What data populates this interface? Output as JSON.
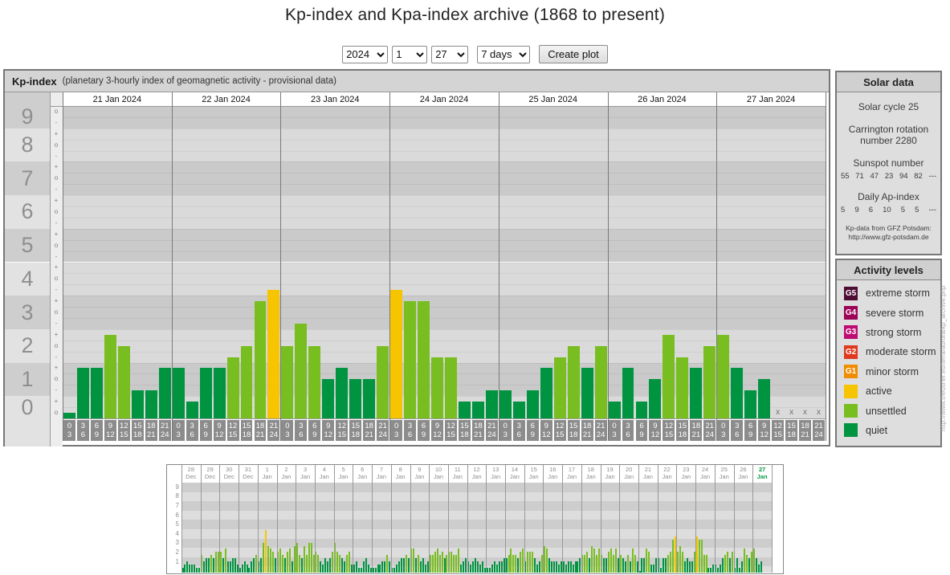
{
  "title": "Kp-index and Kpa-index archive (1868 to present)",
  "controls": {
    "year": "2024",
    "month": "1",
    "day": "27",
    "span": "7 days",
    "create_plot": "Create plot"
  },
  "kp_panel": {
    "title": "Kp-index",
    "subtitle": "(planetary 3-hourly index of geomagnetic activity - provisional data)",
    "no_data_marker": "x"
  },
  "solar_panel": {
    "title": "Solar data",
    "cycle": "Solar cycle 25",
    "carrington": "Carrington rotation number 2280",
    "sunspot_label": "Sunspot number",
    "sunspot_values": [
      "55",
      "71",
      "47",
      "23",
      "94",
      "82",
      "---"
    ],
    "ap_label": "Daily Ap-index",
    "ap_values": [
      "5",
      "9",
      "6",
      "10",
      "5",
      "5",
      "---"
    ],
    "credit_line1": "Kp-data from GFZ Potsdam:",
    "credit_line2": "http://www.gfz-potsdam.de"
  },
  "activity_panel": {
    "title": "Activity levels",
    "levels": [
      {
        "badge": "G5",
        "color": "#4e0d33",
        "label": "extreme storm"
      },
      {
        "badge": "G4",
        "color": "#9c0458",
        "label": "severe storm"
      },
      {
        "badge": "G3",
        "color": "#be0d72",
        "label": "strong storm"
      },
      {
        "badge": "G2",
        "color": "#df3a20",
        "label": "moderate storm"
      },
      {
        "badge": "G1",
        "color": "#f08c00",
        "label": "minor storm"
      },
      {
        "badge": "",
        "color": "#f6c500",
        "label": "active"
      },
      {
        "badge": "",
        "color": "#79be20",
        "label": "unsettled"
      },
      {
        "badge": "",
        "color": "#009440",
        "label": "quiet"
      }
    ]
  },
  "watermark": "http://www.theusner.eu/terra/aurora/kp_archive.php",
  "chart_data": [
    {
      "type": "bar",
      "name": "kp-index-7day",
      "title": "Kp-index (planetary 3-hourly index of geomagnetic activity - provisional data)",
      "ylabel": "Kp",
      "ylim": [
        0,
        9.33
      ],
      "yticks": [
        9,
        8,
        7,
        6,
        5,
        4,
        3,
        2,
        1,
        0
      ],
      "subticks": [
        "+",
        "o",
        "-"
      ],
      "grid": true,
      "legend_position": "right-panel",
      "colors": {
        "quiet": "#009440",
        "unsettled": "#79be20",
        "active": "#f6c500"
      },
      "thresholds": {
        "unsettled_min": 1.6,
        "active_min": 3.5
      },
      "slots": [
        "0-3",
        "3-6",
        "6-9",
        "9-12",
        "12-15",
        "15-18",
        "18-21",
        "21-24"
      ],
      "slot_labels": [
        [
          "0",
          "3"
        ],
        [
          "3",
          "6"
        ],
        [
          "6",
          "9"
        ],
        [
          "9",
          "12"
        ],
        [
          "12",
          "15"
        ],
        [
          "15",
          "18"
        ],
        [
          "18",
          "21"
        ],
        [
          "21",
          "24"
        ]
      ],
      "days": [
        {
          "date": "21 Jan 2024",
          "values": [
            0,
            1.33,
            1.33,
            2.33,
            2,
            0.67,
            0.67,
            1.33
          ]
        },
        {
          "date": "22 Jan 2024",
          "values": [
            1.33,
            0.33,
            1.33,
            1.33,
            1.67,
            2,
            3.33,
            3.67
          ]
        },
        {
          "date": "23 Jan 2024",
          "values": [
            2,
            2.67,
            2,
            1,
            1.33,
            1,
            1,
            2
          ]
        },
        {
          "date": "24 Jan 2024",
          "values": [
            3.67,
            3.33,
            3.33,
            1.67,
            1.67,
            0.33,
            0.33,
            0.67
          ]
        },
        {
          "date": "25 Jan 2024",
          "values": [
            0.67,
            0.33,
            0.67,
            1.33,
            1.67,
            2,
            1.33,
            2
          ]
        },
        {
          "date": "26 Jan 2024",
          "values": [
            0.33,
            1.33,
            0.33,
            1,
            2.33,
            1.67,
            1.33,
            2
          ]
        },
        {
          "date": "27 Jan 2024",
          "values": [
            2.33,
            1.33,
            0.67,
            1,
            null,
            null,
            null,
            null
          ]
        }
      ]
    },
    {
      "type": "bar",
      "name": "kp-index-31day-overview",
      "ylim": [
        0,
        9.33
      ],
      "yticks": [
        9,
        8,
        7,
        6,
        5,
        4,
        3,
        2,
        1
      ],
      "grid": true,
      "highlight_last_day_color": "#0a9a46",
      "days": [
        {
          "d": "28",
          "m": "Dec",
          "v": [
            0.33,
            0.67,
            1,
            0.67,
            0.67,
            0.67,
            0.33,
            0.33
          ]
        },
        {
          "d": "29",
          "m": "Dec",
          "v": [
            1.67,
            1,
            1.33,
            1.33,
            1.67,
            1.33,
            2,
            2
          ]
        },
        {
          "d": "30",
          "m": "Dec",
          "v": [
            2,
            1.33,
            2.33,
            1,
            1,
            1.33,
            1.33,
            0.67
          ]
        },
        {
          "d": "31",
          "m": "Dec",
          "v": [
            0.33,
            0.67,
            1,
            0.67,
            0.33,
            1,
            1.33,
            1.67
          ]
        },
        {
          "d": "1",
          "m": "Jan",
          "v": [
            1,
            1.33,
            3,
            4.33,
            2.67,
            2.33,
            2,
            1.33
          ]
        },
        {
          "d": "2",
          "m": "Jan",
          "v": [
            2,
            2.33,
            1.67,
            1.33,
            2,
            2.33,
            1,
            2.67
          ]
        },
        {
          "d": "3",
          "m": "Jan",
          "v": [
            3,
            1.67,
            1.33,
            2.67,
            1.67,
            3,
            3,
            1.67
          ]
        },
        {
          "d": "4",
          "m": "Jan",
          "v": [
            2,
            1.67,
            1,
            0.67,
            1.33,
            1,
            1.33,
            2
          ]
        },
        {
          "d": "5",
          "m": "Jan",
          "v": [
            3,
            2,
            1.67,
            1.33,
            1,
            1.67,
            2,
            0.67
          ]
        },
        {
          "d": "6",
          "m": "Jan",
          "v": [
            0.67,
            1,
            0.33,
            0.33,
            1,
            1.33,
            0.67,
            0.33
          ]
        },
        {
          "d": "7",
          "m": "Jan",
          "v": [
            0.33,
            0.33,
            0.67,
            0.67,
            1,
            1,
            1.67,
            1
          ]
        },
        {
          "d": "8",
          "m": "Jan",
          "v": [
            0.33,
            0.33,
            0.67,
            1,
            1.33,
            1.33,
            1.67,
            1.33
          ]
        },
        {
          "d": "9",
          "m": "Jan",
          "v": [
            2.33,
            2.33,
            1.33,
            1.67,
            1,
            1.33,
            0.67,
            1
          ]
        },
        {
          "d": "10",
          "m": "Jan",
          "v": [
            1.67,
            1.67,
            2,
            2.33,
            1.67,
            2,
            1.33,
            1.67
          ]
        },
        {
          "d": "11",
          "m": "Jan",
          "v": [
            2,
            2,
            1.67,
            1.67,
            2.33,
            0.67,
            1,
            1.33
          ]
        },
        {
          "d": "12",
          "m": "Jan",
          "v": [
            1,
            0.67,
            1,
            1.33,
            1,
            0.67,
            1,
            0.33
          ]
        },
        {
          "d": "13",
          "m": "Jan",
          "v": [
            0.33,
            0.33,
            0.67,
            1,
            0.67,
            1,
            1,
            1.33
          ]
        },
        {
          "d": "14",
          "m": "Jan",
          "v": [
            1.33,
            1.67,
            2.33,
            1.67,
            1.67,
            1.33,
            2,
            2.33
          ]
        },
        {
          "d": "15",
          "m": "Jan",
          "v": [
            1,
            2,
            2,
            2,
            1.33,
            0.67,
            1,
            1.67
          ]
        },
        {
          "d": "16",
          "m": "Jan",
          "v": [
            2.67,
            2.33,
            1.33,
            1,
            1,
            1,
            0.67,
            1
          ]
        },
        {
          "d": "17",
          "m": "Jan",
          "v": [
            1,
            0.67,
            1,
            1,
            0.67,
            1,
            1,
            1.33
          ]
        },
        {
          "d": "18",
          "m": "Jan",
          "v": [
            1.67,
            1.67,
            2,
            1.33,
            2.67,
            2.33,
            1.67,
            2.33
          ]
        },
        {
          "d": "19",
          "m": "Jan",
          "v": [
            1.67,
            1.33,
            1.33,
            2,
            2.33,
            1.67,
            2.33,
            1.33
          ]
        },
        {
          "d": "20",
          "m": "Jan",
          "v": [
            1.67,
            1.33,
            1,
            1.67,
            1,
            2.33,
            1.67,
            1
          ]
        },
        {
          "d": "21",
          "m": "Jan",
          "v": [
            0,
            1.33,
            1.33,
            2.33,
            2,
            0.67,
            0.67,
            1.33
          ]
        },
        {
          "d": "22",
          "m": "Jan",
          "v": [
            1.33,
            0.33,
            1.33,
            1.33,
            1.67,
            2,
            3.33,
            3.67
          ]
        },
        {
          "d": "23",
          "m": "Jan",
          "v": [
            2,
            2.67,
            2,
            1,
            1.33,
            1,
            1,
            2
          ]
        },
        {
          "d": "24",
          "m": "Jan",
          "v": [
            3.67,
            3.33,
            3.33,
            1.67,
            1.67,
            0.33,
            0.33,
            0.67
          ]
        },
        {
          "d": "25",
          "m": "Jan",
          "v": [
            0.67,
            0.33,
            0.67,
            1.33,
            1.67,
            2,
            1.33,
            2
          ]
        },
        {
          "d": "26",
          "m": "Jan",
          "v": [
            0.33,
            1.33,
            0.33,
            1,
            2.33,
            1.67,
            1.33,
            2
          ]
        },
        {
          "d": "27",
          "m": "Jan",
          "v": [
            2.33,
            1.33,
            0.67,
            1,
            null,
            null,
            null,
            null
          ],
          "current": true
        }
      ]
    }
  ]
}
